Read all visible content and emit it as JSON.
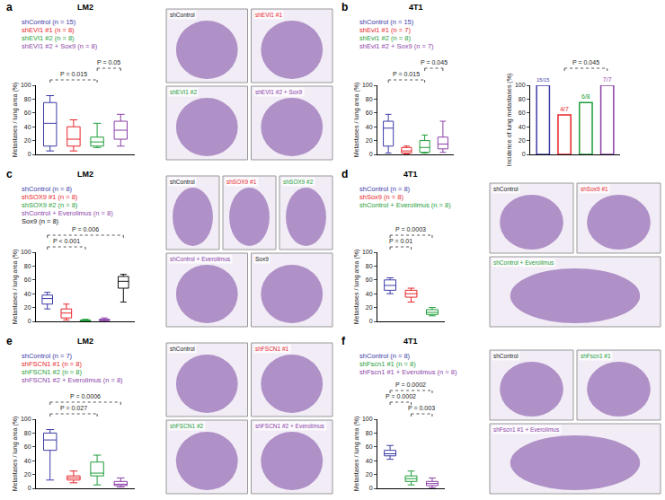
{
  "chart_data": [
    {
      "panel": "a",
      "type": "box",
      "title": "LM2",
      "ylabel": "Metastases / lung area (%)",
      "ylim": [
        0,
        100
      ],
      "yticks": [
        0,
        20,
        40,
        60,
        80,
        100
      ],
      "tick_labels": "y",
      "series": [
        {
          "name": "shControl (n = 15)",
          "color": "#3c3ca8",
          "min": 5,
          "q1": 12,
          "median": 45,
          "q3": 75,
          "max": 85
        },
        {
          "name": "shEVI1 #1 (n = 8)",
          "color": "#e8252a",
          "min": 5,
          "q1": 12,
          "median": 22,
          "q3": 40,
          "max": 50
        },
        {
          "name": "shEVI1 #2 (n = 8)",
          "color": "#1f9e3a",
          "min": 10,
          "q1": 12,
          "median": 18,
          "q3": 25,
          "max": 45
        },
        {
          "name": "shEVI1 #2 + Sox9 (n = 8)",
          "color": "#8b3fa8",
          "min": 12,
          "q1": 22,
          "median": 35,
          "q3": 48,
          "max": 58
        }
      ],
      "comparisons": [
        {
          "from": 0,
          "to": 2,
          "label": "P = 0.015"
        },
        {
          "from": 2,
          "to": 3,
          "label": "P = 0.05"
        }
      ],
      "images": [
        {
          "label": "shControl",
          "color": "#1a1a1a"
        },
        {
          "label": "shEVI1 #1",
          "color": "#e8252a"
        },
        {
          "label": "shEVI1 #2",
          "color": "#1f9e3a"
        },
        {
          "label": "shEVI1 #2 + Sox9",
          "color": "#8b3fa8"
        }
      ]
    },
    {
      "panel": "b",
      "type": "box",
      "title": "4T1",
      "ylabel": "Metastases / lung area (%)",
      "ylim": [
        0,
        100
      ],
      "yticks": [
        0,
        20,
        40,
        60,
        80,
        100
      ],
      "tick_labels": "y",
      "series": [
        {
          "name": "shControl (n = 15)",
          "color": "#3c3ca8",
          "min": 2,
          "q1": 12,
          "median": 38,
          "q3": 48,
          "max": 58
        },
        {
          "name": "shEvi1 #1 (n = 7)",
          "color": "#e8252a",
          "min": 1,
          "q1": 2,
          "median": 5,
          "q3": 10,
          "max": 12
        },
        {
          "name": "shEvi1 #2 (n = 8)",
          "color": "#1f9e3a",
          "min": 2,
          "q1": 3,
          "median": 10,
          "q3": 20,
          "max": 28
        },
        {
          "name": "shEvi1 #2 + Sox9 (n = 7)",
          "color": "#8b3fa8",
          "min": 3,
          "q1": 8,
          "median": 15,
          "q3": 25,
          "max": 48
        }
      ],
      "comparisons": [
        {
          "from": 0,
          "to": 2,
          "label": "P = 0.015"
        },
        {
          "from": 2,
          "to": 3,
          "label": "P = 0.045"
        }
      ]
    },
    {
      "type": "bar",
      "ylabel": "Incidence of lung metastases (%)",
      "ylim": [
        0,
        100
      ],
      "yticks": [
        0,
        20,
        40,
        60,
        80,
        100
      ],
      "tick_labels": "y",
      "values": [
        100,
        57.1,
        75,
        100
      ],
      "value_labels": [
        "15/15",
        "4/7",
        "6/8",
        "7/7"
      ],
      "colors": [
        "#3c3ca8",
        "#e8252a",
        "#1f9e3a",
        "#8b3fa8"
      ],
      "comparisons": [
        {
          "from": 1,
          "to": 3,
          "label": "P = 0.045"
        }
      ]
    },
    {
      "panel": "c",
      "type": "box",
      "title": "LM2",
      "ylabel": "Metastases / lung area (%)",
      "ylim": [
        0,
        100
      ],
      "yticks": [
        0,
        20,
        40,
        60,
        80,
        100
      ],
      "tick_labels": "y",
      "series": [
        {
          "name": "shControl (n = 8)",
          "color": "#3c3ca8",
          "min": 18,
          "q1": 25,
          "median": 33,
          "q3": 38,
          "max": 42
        },
        {
          "name": "shSOX9 #1 (n = 8)",
          "color": "#e8252a",
          "min": 2,
          "q1": 5,
          "median": 12,
          "q3": 18,
          "max": 25
        },
        {
          "name": "shSOX9 #2 (n = 8)",
          "color": "#1f9e3a",
          "min": 0,
          "q1": 0.5,
          "median": 1,
          "q3": 2,
          "max": 3
        },
        {
          "name": "shControl + Everolimus (n = 8)",
          "color": "#8b3fa8",
          "min": 0,
          "q1": 1,
          "median": 2,
          "q3": 3,
          "max": 5
        },
        {
          "name": "Sox9 (n = 8)",
          "color": "#111111",
          "min": 28,
          "q1": 48,
          "median": 58,
          "q3": 65,
          "max": 68
        }
      ],
      "comparisons": [
        {
          "from": 0,
          "to": 2,
          "label": "P < 0.001"
        },
        {
          "from": 0,
          "to": 4,
          "label": "P = 0.006"
        }
      ],
      "images": [
        {
          "label": "shControl",
          "color": "#1a1a1a"
        },
        {
          "label": "shSOX9 #1",
          "color": "#e8252a"
        },
        {
          "label": "shSOX9 #2",
          "color": "#1f9e3a"
        },
        {
          "label": "shControl + Everolimus",
          "color": "#8b3fa8"
        },
        {
          "label": "Sox9",
          "color": "#1a1a1a"
        }
      ]
    },
    {
      "panel": "d",
      "type": "box",
      "title": "4T1",
      "ylabel": "Metastases / lung area (%)",
      "ylim": [
        0,
        100
      ],
      "yticks": [
        0,
        20,
        40,
        60,
        80,
        100
      ],
      "tick_labels": "y",
      "series": [
        {
          "name": "shControl (n = 8)",
          "color": "#3c3ca8",
          "min": 40,
          "q1": 45,
          "median": 52,
          "q3": 60,
          "max": 63
        },
        {
          "name": "shSox9 (n = 8)",
          "color": "#e8252a",
          "min": 28,
          "q1": 35,
          "median": 40,
          "q3": 45,
          "max": 48
        },
        {
          "name": "shControl + Everolimus (n = 8)",
          "color": "#1f9e3a",
          "min": 8,
          "q1": 10,
          "median": 13,
          "q3": 17,
          "max": 20
        }
      ],
      "comparisons": [
        {
          "from": 0,
          "to": 1,
          "label": "P = 0.01"
        },
        {
          "from": 0,
          "to": 2,
          "label": "P = 0.0003"
        }
      ],
      "images": [
        {
          "label": "shControl",
          "color": "#1a1a1a"
        },
        {
          "label": "shSox9 #1",
          "color": "#e8252a"
        },
        {
          "label": "shControl + Everolimus",
          "color": "#1f9e3a"
        }
      ]
    },
    {
      "panel": "e",
      "type": "box",
      "title": "LM2",
      "ylabel": "Metastases / lung area (%)",
      "ylim": [
        0,
        100
      ],
      "yticks": [
        0,
        20,
        40,
        60,
        80,
        100
      ],
      "tick_labels": "y",
      "series": [
        {
          "name": "shControl (n = 7)",
          "color": "#3c3ca8",
          "min": 12,
          "q1": 55,
          "median": 70,
          "q3": 80,
          "max": 85
        },
        {
          "name": "shFSCN1 #1 (n = 8)",
          "color": "#e8252a",
          "min": 8,
          "q1": 12,
          "median": 15,
          "q3": 18,
          "max": 25
        },
        {
          "name": "shFSCN1 #2 (n = 8)",
          "color": "#1f9e3a",
          "min": 5,
          "q1": 18,
          "median": 22,
          "q3": 38,
          "max": 48
        },
        {
          "name": "shFSCN1 #2 + Everolimus (n = 8)",
          "color": "#8b3fa8",
          "min": 2,
          "q1": 4,
          "median": 6,
          "q3": 10,
          "max": 15
        }
      ],
      "comparisons": [
        {
          "from": 0,
          "to": 2,
          "label": "P = 0.027"
        },
        {
          "from": 0,
          "to": 3,
          "label": "P = 0.0006"
        }
      ],
      "images": [
        {
          "label": "shControl",
          "color": "#1a1a1a"
        },
        {
          "label": "shFSCN1 #1",
          "color": "#e8252a"
        },
        {
          "label": "shFSCN1 #2",
          "color": "#1f9e3a"
        },
        {
          "label": "shFSCN1 #2 + Everolimus",
          "color": "#8b3fa8"
        }
      ]
    },
    {
      "panel": "f",
      "type": "box",
      "title": "4T1",
      "ylabel": "Metastases / lung area (%)",
      "ylim": [
        0,
        100
      ],
      "yticks": [
        0,
        20,
        40,
        60,
        80,
        100
      ],
      "tick_labels": "y",
      "series": [
        {
          "name": "shControl (n = 8)",
          "color": "#3c3ca8",
          "min": 42,
          "q1": 47,
          "median": 50,
          "q3": 55,
          "max": 62
        },
        {
          "name": "shFscn1 #1 (n = 8)",
          "color": "#1f9e3a",
          "min": 5,
          "q1": 10,
          "median": 14,
          "q3": 18,
          "max": 25
        },
        {
          "name": "shFscn1 #1 + Everolimus (n = 8)",
          "color": "#8b3fa8",
          "min": 1,
          "q1": 4,
          "median": 7,
          "q3": 10,
          "max": 15
        }
      ],
      "comparisons": [
        {
          "from": 1,
          "to": 2,
          "label": "P = 0.003"
        },
        {
          "from": 0,
          "to": 1,
          "label": "P = 0.0002"
        },
        {
          "from": 0,
          "to": 2,
          "label": "P = 0.0002"
        }
      ],
      "images": [
        {
          "label": "shControl",
          "color": "#1a1a1a"
        },
        {
          "label": "shFscn1 #1",
          "color": "#1f9e3a"
        },
        {
          "label": "shFscn1 #1 + Everolimus",
          "color": "#8b3fa8"
        }
      ]
    }
  ]
}
